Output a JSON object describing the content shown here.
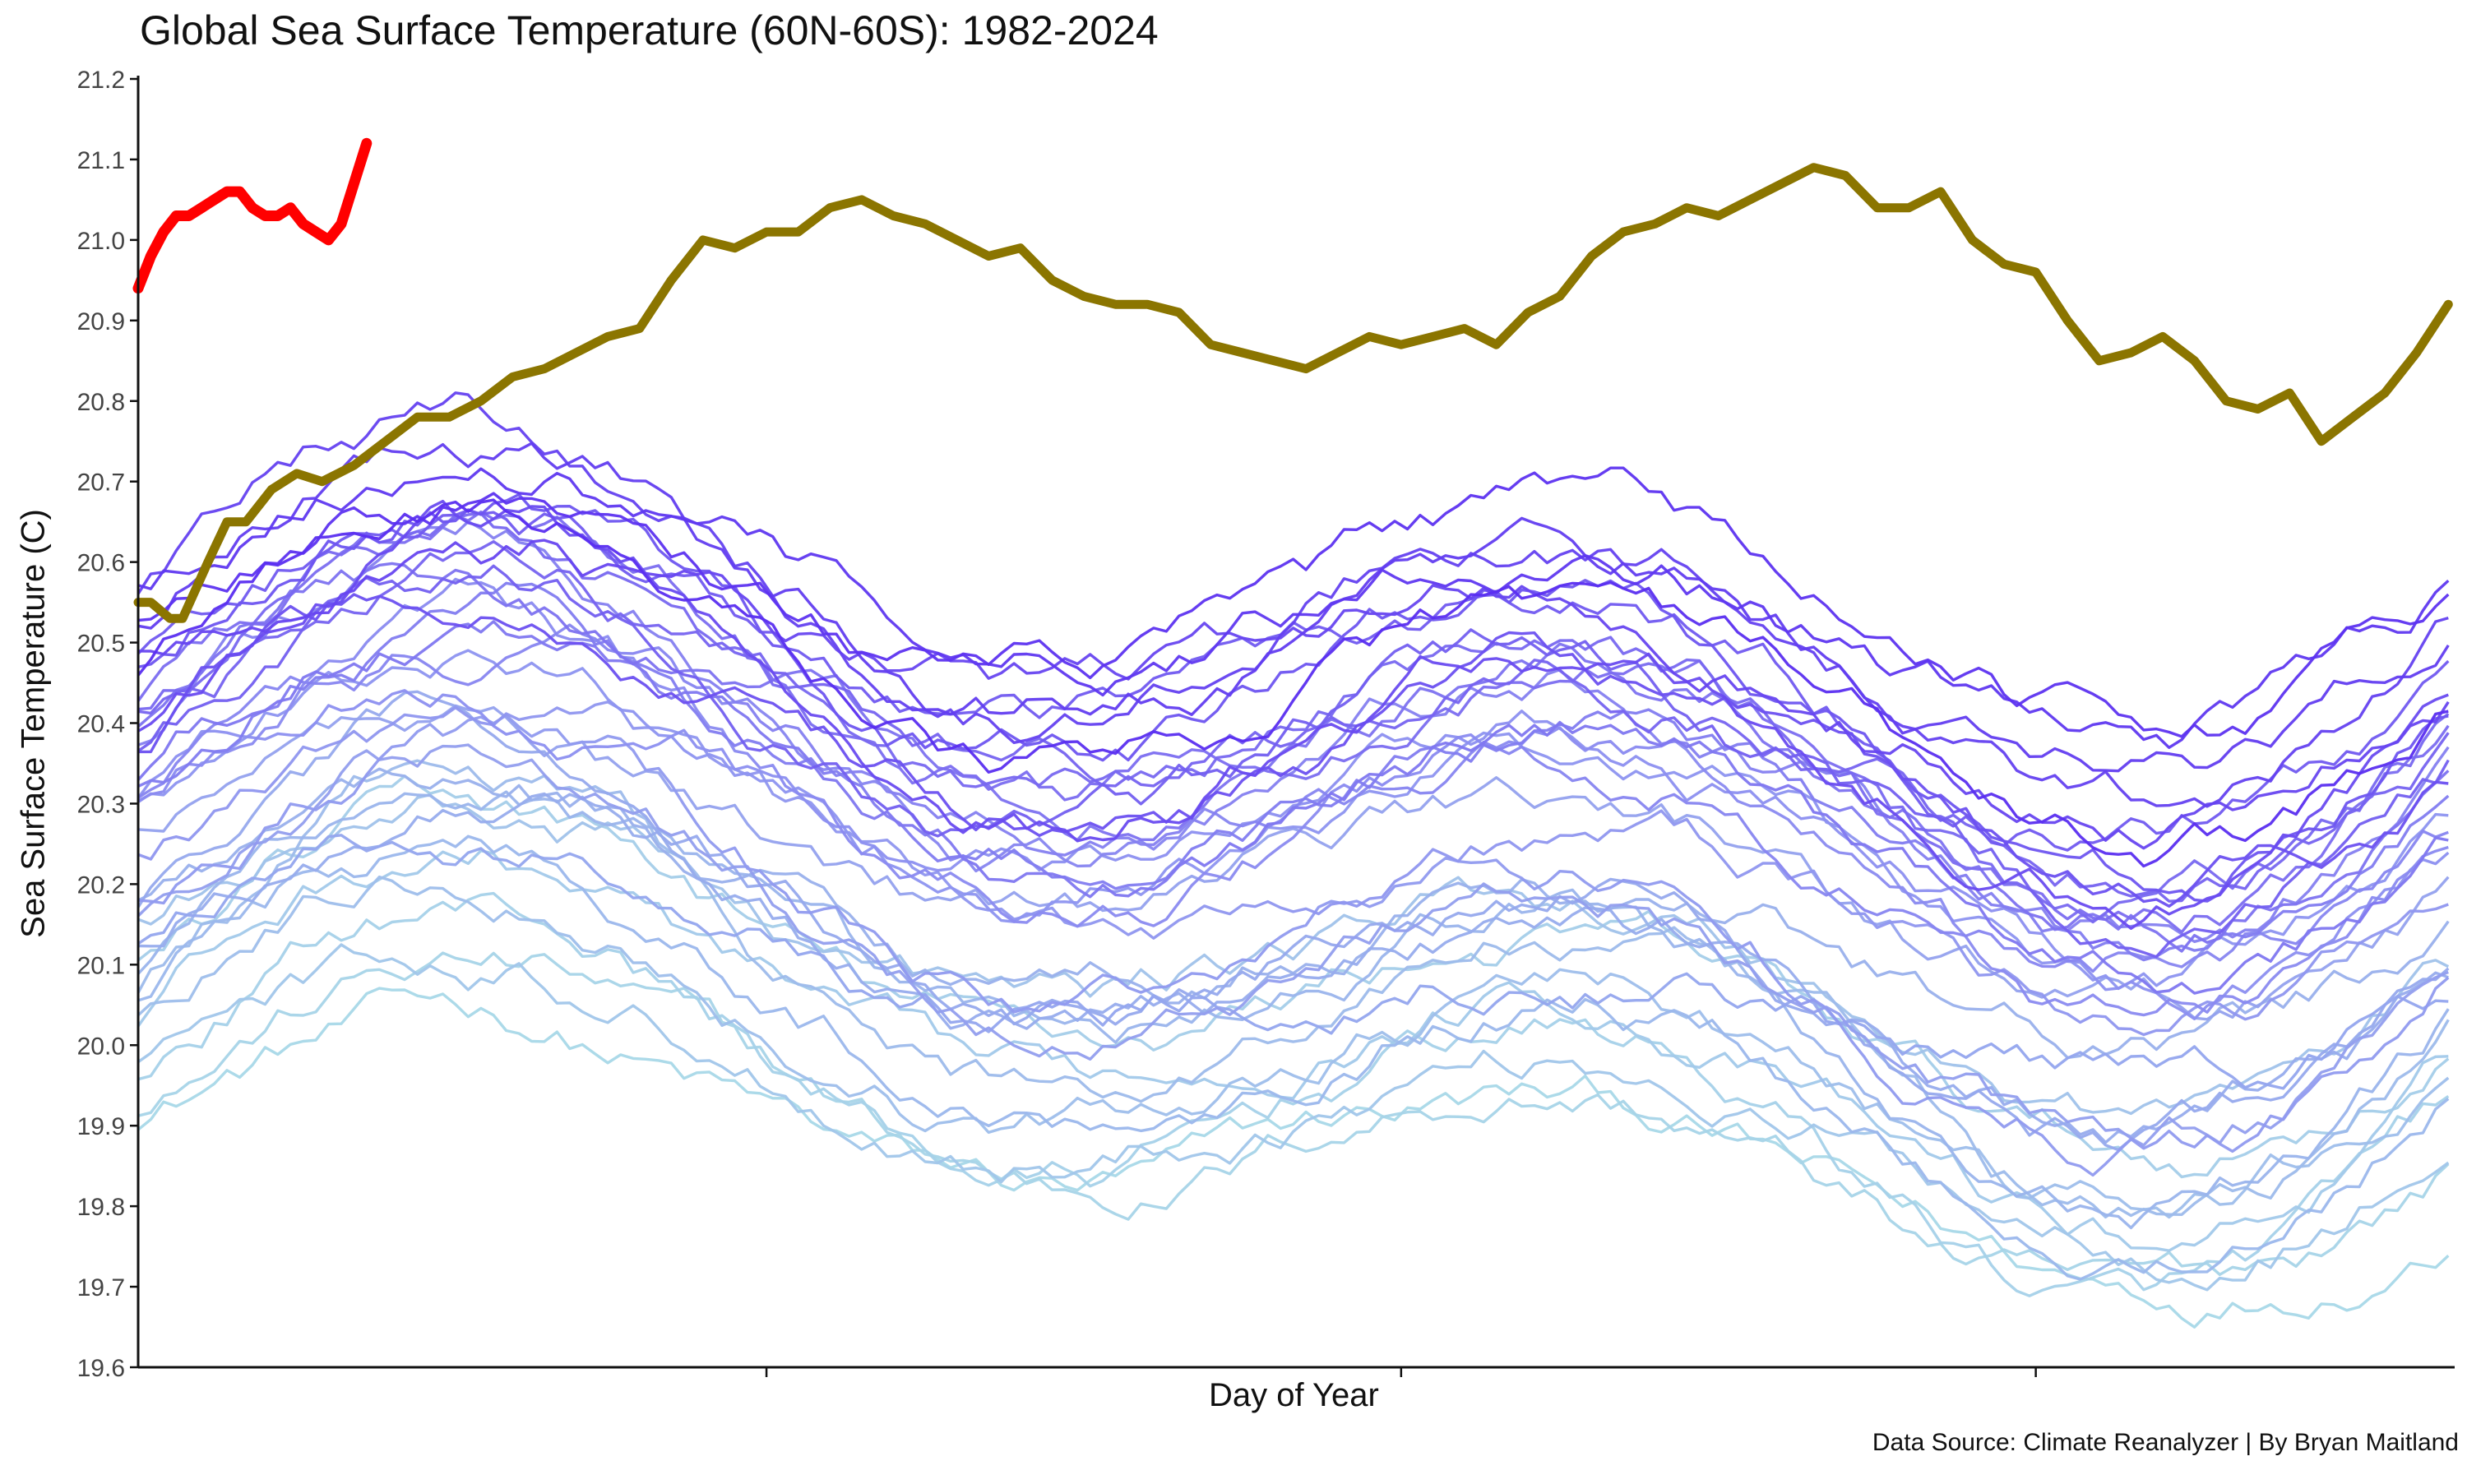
{
  "chart_data": {
    "type": "line",
    "title": "Global Sea Surface Temperature (60N-60S): 1982-2024",
    "xlabel": "Day of Year",
    "ylabel": "Sea Surface Temperature (C)",
    "caption": "Data Source: Climate Reanalyzer | By Bryan Maitland",
    "ylim": [
      19.6,
      21.2
    ],
    "yticks": [
      "19.6",
      "19.7",
      "19.8",
      "19.9",
      "20.0",
      "20.1",
      "20.2",
      "20.3",
      "20.4",
      "20.5",
      "20.6",
      "20.7",
      "20.8",
      "20.9",
      "21.0",
      "21.1",
      "21.2"
    ],
    "xlim": [
      1,
      366
    ],
    "xticks": [
      100,
      200,
      300
    ],
    "grid": false,
    "legend": "none",
    "colors": {
      "oldest_year": "#a8d8e8",
      "mid_year": "#8c8ff0",
      "recent_year": "#5a2ef0",
      "year_2023": "#8b7500",
      "year_2024": "#ff0000"
    },
    "series_2023": {
      "x": [
        1,
        3,
        6,
        8,
        12,
        15,
        18,
        22,
        26,
        30,
        35,
        40,
        45,
        50,
        55,
        60,
        65,
        70,
        75,
        80,
        85,
        90,
        95,
        100,
        105,
        110,
        115,
        120,
        125,
        130,
        135,
        140,
        145,
        150,
        155,
        160,
        165,
        170,
        175,
        180,
        185,
        190,
        195,
        200,
        205,
        210,
        215,
        220,
        225,
        230,
        235,
        240,
        245,
        250,
        255,
        260,
        265,
        270,
        275,
        280,
        285,
        290,
        295,
        300,
        305,
        310,
        315,
        320,
        325,
        330,
        335,
        340,
        345,
        350,
        355,
        360,
        365
      ],
      "y": [
        20.55,
        20.55,
        20.53,
        20.53,
        20.6,
        20.65,
        20.65,
        20.69,
        20.71,
        20.7,
        20.72,
        20.75,
        20.78,
        20.78,
        20.8,
        20.83,
        20.84,
        20.86,
        20.88,
        20.89,
        20.95,
        21.0,
        20.99,
        21.01,
        21.01,
        21.04,
        21.05,
        21.03,
        21.02,
        21.0,
        20.98,
        20.99,
        20.95,
        20.93,
        20.92,
        20.92,
        20.91,
        20.87,
        20.86,
        20.85,
        20.84,
        20.86,
        20.88,
        20.87,
        20.88,
        20.89,
        20.87,
        20.91,
        20.93,
        20.98,
        21.01,
        21.02,
        21.04,
        21.03,
        21.05,
        21.07,
        21.09,
        21.08,
        21.04,
        21.04,
        21.06,
        21.0,
        20.97,
        20.96,
        20.9,
        20.85,
        20.86,
        20.88,
        20.85,
        20.8,
        20.79,
        20.81,
        20.75,
        20.78,
        20.81,
        20.86,
        20.92
      ]
    },
    "series_2024": {
      "x": [
        1,
        3,
        5,
        7,
        9,
        11,
        13,
        15,
        17,
        19,
        21,
        23,
        25,
        27,
        29,
        31,
        33,
        35,
        37
      ],
      "y": [
        20.94,
        20.98,
        21.01,
        21.03,
        21.03,
        21.04,
        21.05,
        21.06,
        21.06,
        21.04,
        21.03,
        21.03,
        21.04,
        21.02,
        21.01,
        21.0,
        21.02,
        21.07,
        21.12
      ]
    },
    "series_1982_2022_note": "41 yearly lines (1982-2022), shaded light blue (older) to violet (recent); typical range 19.65-20.95 C"
  }
}
